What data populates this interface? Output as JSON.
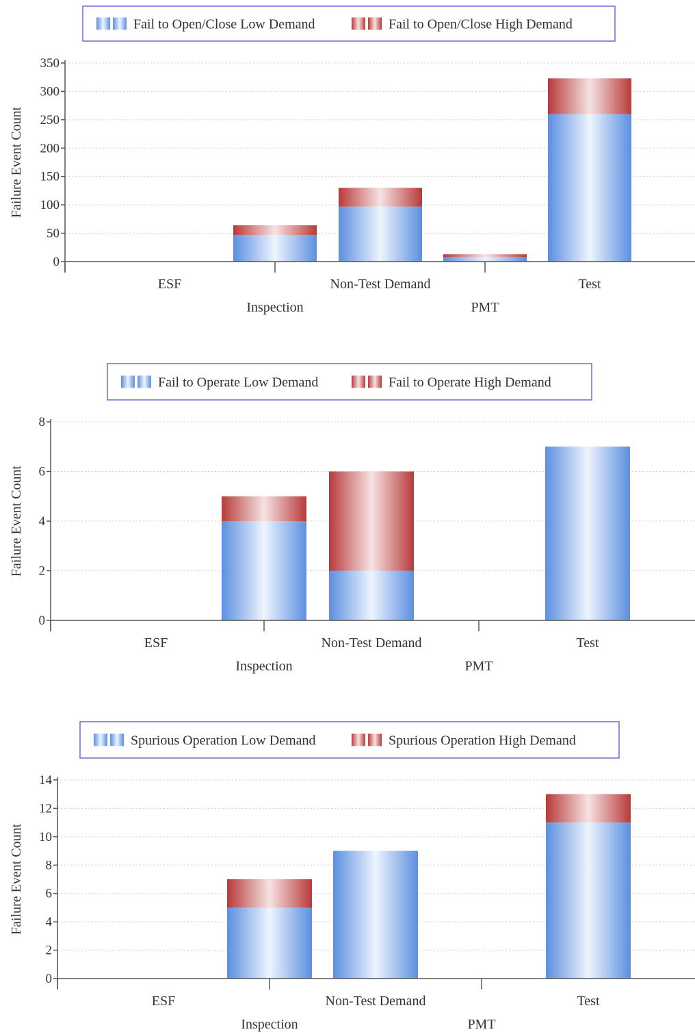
{
  "colors": {
    "low": "#6fa0e6",
    "high": "#c24444",
    "legend_border": "#6b6bd6",
    "axis": "#555555",
    "grid": "#cccccc"
  },
  "chart_data": [
    {
      "type": "bar",
      "stacked": true,
      "categories": [
        "ESF",
        "Inspection",
        "Non-Test Demand",
        "PMT",
        "Test"
      ],
      "series": [
        {
          "name": "Fail to Open/Close Low Demand",
          "values": [
            0,
            47,
            97,
            8,
            260
          ]
        },
        {
          "name": "Fail to Open/Close High Demand",
          "values": [
            0,
            17,
            33,
            5,
            63
          ]
        }
      ],
      "ylabel": "Failure Event Count",
      "ylim": [
        0,
        350
      ],
      "yticks": [
        0,
        50,
        100,
        150,
        200,
        250,
        300,
        350
      ],
      "grid": true,
      "legend": "top"
    },
    {
      "type": "bar",
      "stacked": true,
      "categories": [
        "ESF",
        "Inspection",
        "Non-Test Demand",
        "PMT",
        "Test"
      ],
      "series": [
        {
          "name": "Fail to Operate Low Demand",
          "values": [
            0,
            4,
            2,
            0,
            7
          ]
        },
        {
          "name": "Fail to Operate High Demand",
          "values": [
            0,
            1,
            4,
            0,
            0
          ]
        }
      ],
      "ylabel": "Failure Event Count",
      "ylim": [
        0,
        8
      ],
      "yticks": [
        0,
        2,
        4,
        6,
        8
      ],
      "grid": true,
      "legend": "top"
    },
    {
      "type": "bar",
      "stacked": true,
      "categories": [
        "ESF",
        "Inspection",
        "Non-Test Demand",
        "PMT",
        "Test"
      ],
      "series": [
        {
          "name": "Spurious Operation Low Demand",
          "values": [
            0,
            5,
            9,
            0,
            11
          ]
        },
        {
          "name": "Spurious Operation High Demand",
          "values": [
            0,
            2,
            0,
            0,
            2
          ]
        }
      ],
      "ylabel": "Failure Event Count",
      "ylim": [
        0,
        14
      ],
      "yticks": [
        0,
        2,
        4,
        6,
        8,
        10,
        12,
        14
      ],
      "grid": true,
      "legend": "top"
    }
  ]
}
